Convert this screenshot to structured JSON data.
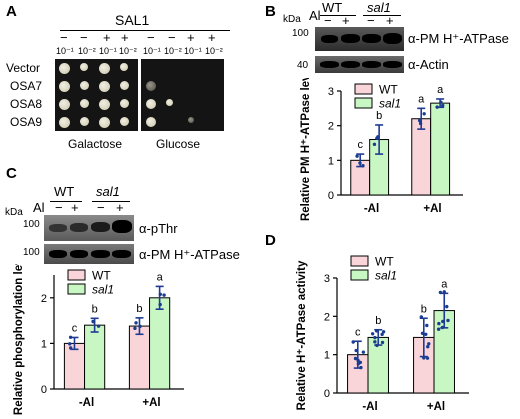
{
  "colors": {
    "wt": "#f9d4d8",
    "sal1": "#c9f7c3",
    "point": "#1a3d8f",
    "err": "#1f3a93"
  },
  "panelA": {
    "label": "A",
    "header": "SAL1",
    "signs": [
      "−",
      "−",
      "+",
      "+",
      "−",
      "−",
      "+",
      "+"
    ],
    "dilutions": [
      "10⁻¹",
      "10⁻²",
      "10⁻¹",
      "10⁻²",
      "10⁻¹",
      "10⁻²",
      "10⁻¹",
      "10⁻²"
    ],
    "rows": [
      "Vector",
      "OSA7",
      "OSA8",
      "OSA9"
    ],
    "media": [
      "Galactose",
      "Glucose"
    ]
  },
  "panelB": {
    "label": "B",
    "kda": "kDa",
    "al": "Al",
    "genotypes": [
      "WT",
      "sal1"
    ],
    "treat": [
      "−",
      "+",
      "−",
      "+"
    ],
    "marker1": "100",
    "marker2": "40",
    "blot1": "α-PM H⁺-ATPase",
    "blot2": "α-Actin"
  },
  "panelC": {
    "label": "C",
    "kda": "kDa",
    "al": "Al",
    "genotypes": [
      "WT",
      "sal1"
    ],
    "treat": [
      "−",
      "+",
      "−",
      "+"
    ],
    "marker1": "100",
    "marker2": "100",
    "blot1": "α-pThr",
    "blot2": "α-PM H⁺-ATPase"
  },
  "panelD": {
    "label": "D"
  },
  "chart_data": [
    {
      "panel": "B",
      "type": "bar",
      "categories": [
        "-Al",
        "+Al"
      ],
      "ylabel": "Relative PM H⁺-ATPase level",
      "ylim": [
        0,
        3
      ],
      "yticks": [
        0,
        1,
        2,
        3
      ],
      "legend": "top-left",
      "series": [
        {
          "name": "WT",
          "values": [
            1.0,
            2.2
          ],
          "errors": [
            0.18,
            0.3
          ],
          "letters": [
            "c",
            "a"
          ]
        },
        {
          "name": "sal1",
          "values": [
            1.6,
            2.65
          ],
          "errors": [
            0.42,
            0.12
          ],
          "letters": [
            "b",
            "a"
          ]
        }
      ]
    },
    {
      "panel": "C",
      "type": "bar",
      "categories": [
        "-Al",
        "+Al"
      ],
      "ylabel": "Relative phosphorylation level",
      "ylim": [
        0,
        2.5
      ],
      "yticks": [
        0,
        1,
        2
      ],
      "legend": "top-left",
      "series": [
        {
          "name": "WT",
          "values": [
            1.0,
            1.38
          ],
          "errors": [
            0.13,
            0.18
          ],
          "letters": [
            "c",
            "b"
          ]
        },
        {
          "name": "sal1",
          "values": [
            1.4,
            2.0
          ],
          "errors": [
            0.15,
            0.25
          ],
          "letters": [
            "b",
            "a"
          ]
        }
      ]
    },
    {
      "panel": "D",
      "type": "bar",
      "categories": [
        "-Al",
        "+Al"
      ],
      "ylabel": "Relative H⁺-ATPase activity",
      "ylim": [
        0,
        3
      ],
      "yticks": [
        0,
        1,
        2,
        3
      ],
      "legend": "top-left",
      "series": [
        {
          "name": "WT",
          "values": [
            1.0,
            1.45
          ],
          "errors": [
            0.35,
            0.5
          ],
          "letters": [
            "c",
            "b"
          ]
        },
        {
          "name": "sal1",
          "values": [
            1.45,
            2.15
          ],
          "errors": [
            0.2,
            0.45
          ],
          "letters": [
            "b",
            "a"
          ]
        }
      ]
    }
  ]
}
